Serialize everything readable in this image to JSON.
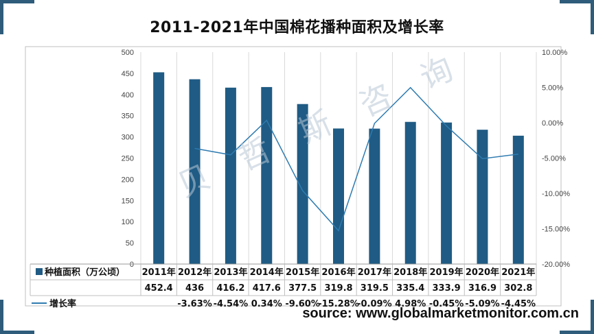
{
  "title": "2011-2021年中国棉花播种面积及增长率",
  "source": "source: www.globalmarketmonitor.com.cn",
  "watermark": "贝 哲 斯 咨 询",
  "colors": {
    "bar": "#1f5b84",
    "line": "#2e7bb0",
    "accent": "#2e5c7a",
    "grid": "#d9d9d9"
  },
  "chart_data": {
    "type": "bar",
    "categories": [
      "2011年",
      "2012年",
      "2013年",
      "2014年",
      "2015年",
      "2016年",
      "2017年",
      "2018年",
      "2019年",
      "2020年",
      "2021年"
    ],
    "series": [
      {
        "name": "种植面积（万公顷）",
        "type": "bar",
        "axis": "left",
        "values": [
          452.4,
          436,
          416.2,
          417.6,
          377.5,
          319.8,
          319.5,
          335.4,
          333.9,
          316.9,
          302.8
        ],
        "labels": [
          "452.4",
          "436",
          "416.2",
          "417.6",
          "377.5",
          "319.8",
          "319.5",
          "335.4",
          "333.9",
          "316.9",
          "302.8"
        ]
      },
      {
        "name": "增长率",
        "type": "line",
        "axis": "right",
        "values": [
          null,
          -3.63,
          -4.54,
          0.34,
          -9.6,
          -15.28,
          -0.09,
          4.98,
          -0.45,
          -5.09,
          -4.45
        ],
        "labels": [
          "",
          "-3.63%",
          "-4.54%",
          "0.34%",
          "-9.60%",
          "-15.28%",
          "-0.09%",
          "4.98%",
          "-0.45%",
          "-5.09%",
          "-4.45%"
        ]
      }
    ],
    "y_left": {
      "min": 0,
      "max": 500,
      "ticks": [
        "0",
        "50",
        "100",
        "150",
        "200",
        "250",
        "300",
        "350",
        "400",
        "450",
        "500"
      ]
    },
    "y_right": {
      "min": -20,
      "max": 10,
      "ticks": [
        "-20.00%",
        "-15.00%",
        "-10.00%",
        "-5.00%",
        "0.00%",
        "5.00%",
        "10.00%"
      ]
    },
    "grid": "vertical",
    "legend": "data-table"
  }
}
